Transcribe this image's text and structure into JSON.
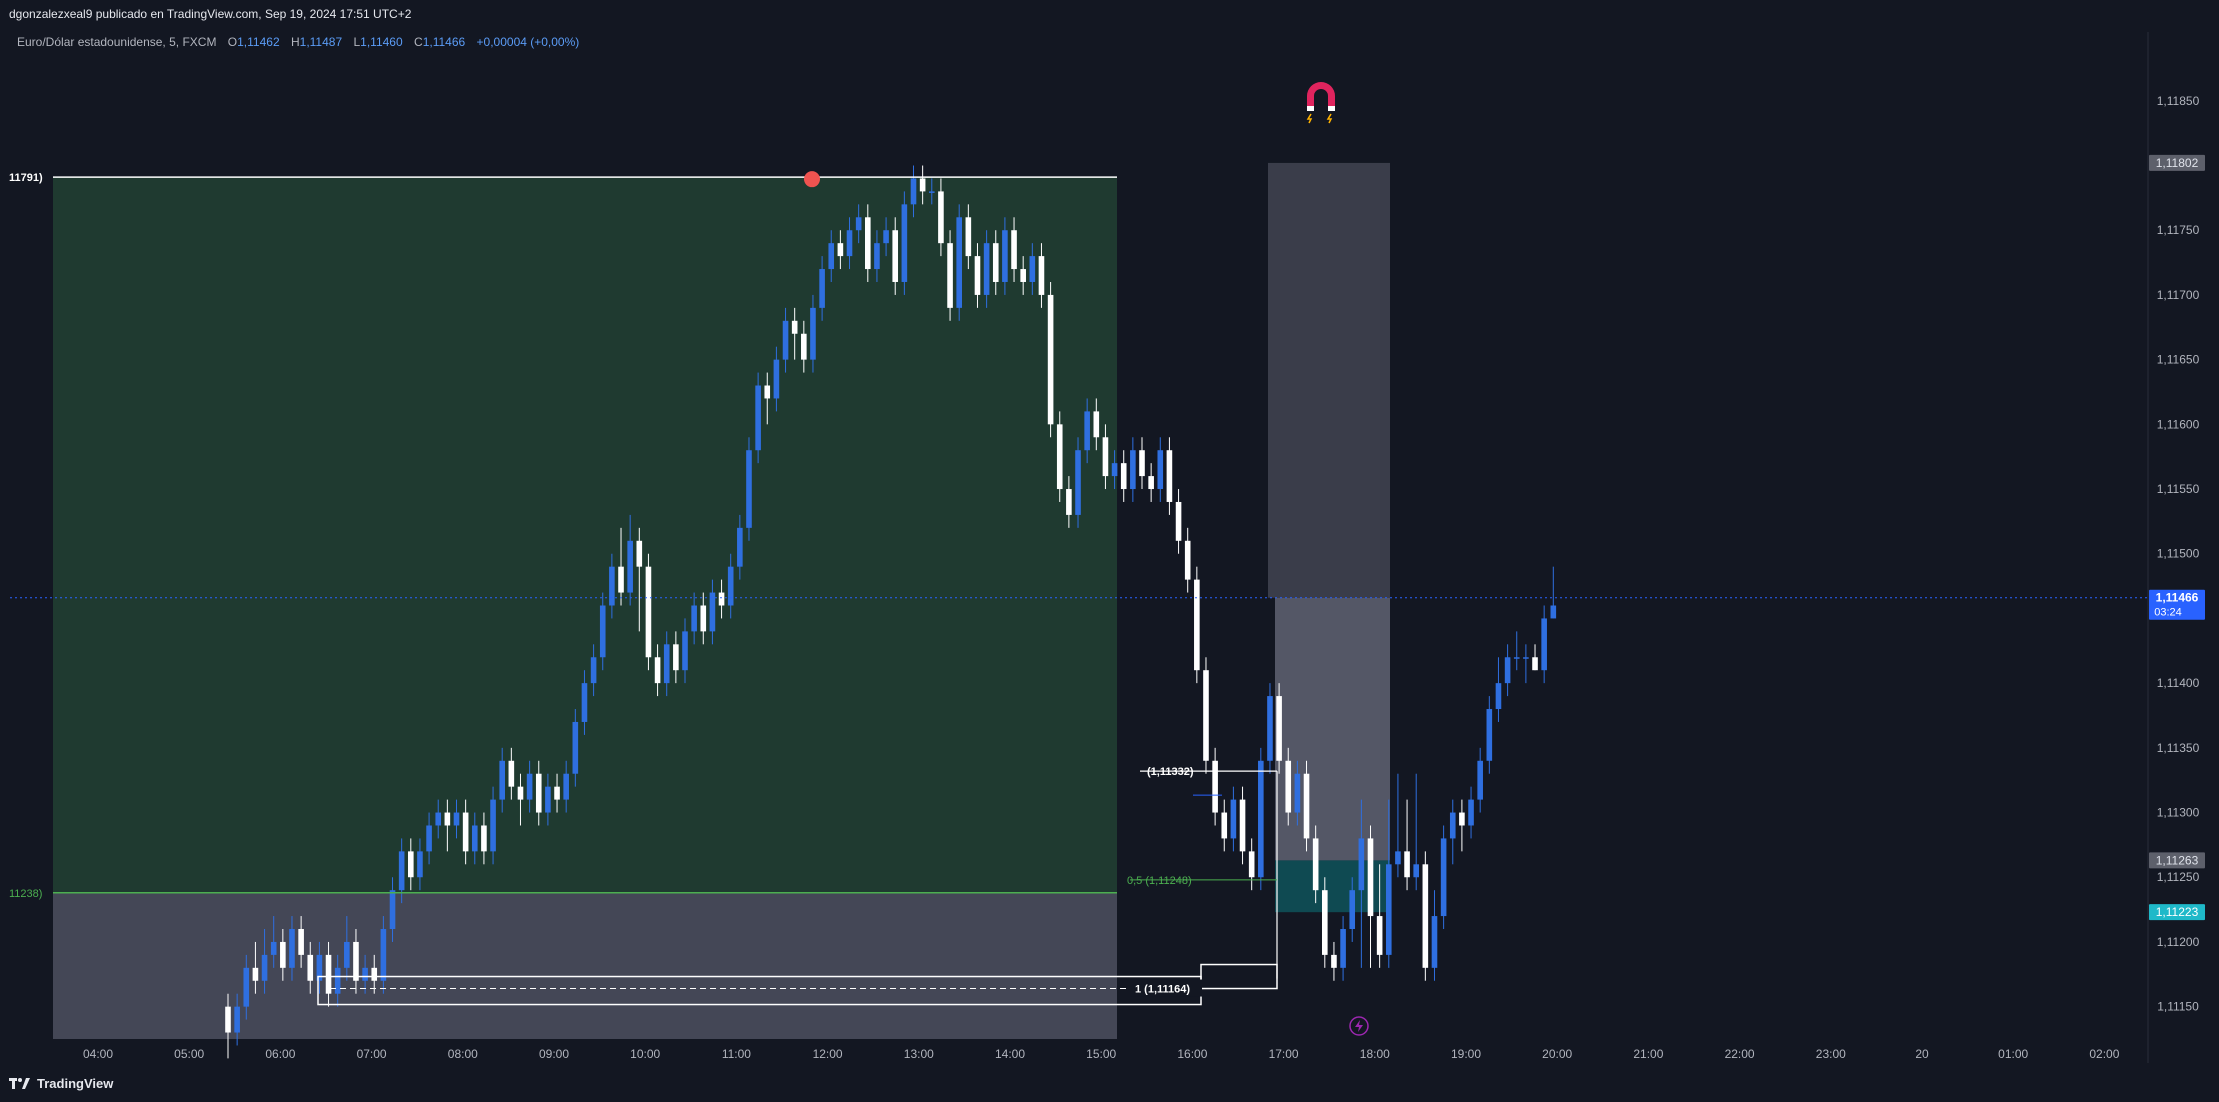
{
  "header": {
    "published": "dgonzalezxeal9 publicado en TradingView.com, Sep 19, 2024 17:51 UTC+2",
    "symbol": "Euro/Dólar estadounidense, 5, FXCM",
    "ohlc": [
      {
        "key": "O",
        "value": "1,11462"
      },
      {
        "key": "H",
        "value": "1,11487"
      },
      {
        "key": "L",
        "value": "1,11460"
      },
      {
        "key": "C",
        "value": "1,11466"
      }
    ],
    "change": "+0,00004 (+0,00%)"
  },
  "footer": {
    "brand": "TradingView",
    "logo_icon": "tradingview-logo-icon"
  },
  "colors": {
    "background": "#131722",
    "bull": "#2f6fe0",
    "bear": "#ffffff",
    "zone_green": "#1f3a30",
    "zone_gray": "#4a4d5c",
    "price_tag": "#2962ff",
    "cyan_tag": "#1fb9c9",
    "fib_green": "#4caf50"
  },
  "chart_data": {
    "type": "candlestick",
    "symbol": "EUR/USD",
    "interval": "5",
    "x_ticks": [
      "04:00",
      "05:00",
      "06:00",
      "07:00",
      "08:00",
      "09:00",
      "10:00",
      "11:00",
      "12:00",
      "13:00",
      "14:00",
      "15:00",
      "16:00",
      "17:00",
      "18:00",
      "19:00",
      "20:00",
      "21:00",
      "22:00",
      "23:00",
      "20",
      "01:00",
      "02:00"
    ],
    "y_ticks": [
      "1,11850",
      "1,11750",
      "1,11700",
      "1,11650",
      "1,11600",
      "1,11550",
      "1,11500",
      "1,11400",
      "1,11350",
      "1,11300",
      "1,11250",
      "1,11200",
      "1,11150"
    ],
    "ylim": [
      1.11125,
      1.1188
    ],
    "price_tags": [
      {
        "label": "1,11802",
        "value": 1.11802,
        "style": "gray"
      },
      {
        "label": "1,11466",
        "sub": "03:24",
        "value": 1.11466,
        "style": "blue"
      },
      {
        "label": "1,11263",
        "value": 1.11263,
        "style": "gray"
      },
      {
        "label": "1,11223",
        "value": 1.11223,
        "style": "cyan"
      }
    ],
    "levels": [
      {
        "label": "11791)",
        "value": 1.11791,
        "color": "#ffffff"
      },
      {
        "label": "11238)",
        "value": 1.11238,
        "color": "#4caf50"
      }
    ],
    "annotations": [
      {
        "label": "(1,11332)",
        "value": 1.11332
      },
      {
        "label": "1 (1,11164)",
        "value": 1.11164
      },
      {
        "label": "0,5 (1,11248)",
        "value": 1.11248
      }
    ],
    "current_price": 1.11466,
    "countdown": "03:24",
    "candles": [
      [
        1.1115,
        1.1113,
        1.1116,
        1.1111
      ],
      [
        1.1113,
        1.1115,
        1.1116,
        1.1112
      ],
      [
        1.1115,
        1.1118,
        1.1119,
        1.1114
      ],
      [
        1.1118,
        1.1117,
        1.112,
        1.1116
      ],
      [
        1.1117,
        1.1119,
        1.1121,
        1.1116
      ],
      [
        1.1119,
        1.112,
        1.1122,
        1.1118
      ],
      [
        1.112,
        1.1118,
        1.1121,
        1.1117
      ],
      [
        1.1118,
        1.1121,
        1.1122,
        1.1117
      ],
      [
        1.1121,
        1.1119,
        1.1122,
        1.1118
      ],
      [
        1.1119,
        1.1117,
        1.112,
        1.1116
      ],
      [
        1.1117,
        1.1119,
        1.112,
        1.1116
      ],
      [
        1.1119,
        1.1116,
        1.112,
        1.1115
      ],
      [
        1.1116,
        1.1118,
        1.1119,
        1.1115
      ],
      [
        1.1118,
        1.112,
        1.1122,
        1.1117
      ],
      [
        1.112,
        1.1117,
        1.1121,
        1.1116
      ],
      [
        1.1117,
        1.1118,
        1.1119,
        1.1116
      ],
      [
        1.1118,
        1.1117,
        1.1119,
        1.1116
      ],
      [
        1.1117,
        1.1121,
        1.1122,
        1.1116
      ],
      [
        1.1121,
        1.1124,
        1.1125,
        1.112
      ],
      [
        1.1124,
        1.1127,
        1.1128,
        1.1123
      ],
      [
        1.1127,
        1.1125,
        1.1128,
        1.1124
      ],
      [
        1.1125,
        1.1127,
        1.1128,
        1.1124
      ],
      [
        1.1127,
        1.1129,
        1.113,
        1.1126
      ],
      [
        1.1129,
        1.113,
        1.1131,
        1.1128
      ],
      [
        1.113,
        1.1129,
        1.1131,
        1.1127
      ],
      [
        1.1129,
        1.113,
        1.1131,
        1.1128
      ],
      [
        1.113,
        1.1127,
        1.1131,
        1.1126
      ],
      [
        1.1127,
        1.1129,
        1.113,
        1.1126
      ],
      [
        1.1129,
        1.1127,
        1.113,
        1.1126
      ],
      [
        1.1127,
        1.1131,
        1.1132,
        1.1126
      ],
      [
        1.1131,
        1.1134,
        1.1135,
        1.113
      ],
      [
        1.1134,
        1.1132,
        1.1135,
        1.1131
      ],
      [
        1.1132,
        1.1131,
        1.1133,
        1.1129
      ],
      [
        1.1131,
        1.1133,
        1.1134,
        1.113
      ],
      [
        1.1133,
        1.113,
        1.1134,
        1.1129
      ],
      [
        1.113,
        1.1132,
        1.1133,
        1.1129
      ],
      [
        1.1132,
        1.1131,
        1.1133,
        1.113
      ],
      [
        1.1131,
        1.1133,
        1.1134,
        1.113
      ],
      [
        1.1133,
        1.1137,
        1.1138,
        1.1132
      ],
      [
        1.1137,
        1.114,
        1.1141,
        1.1136
      ],
      [
        1.114,
        1.1142,
        1.1143,
        1.1139
      ],
      [
        1.1142,
        1.1146,
        1.1147,
        1.1141
      ],
      [
        1.1146,
        1.1149,
        1.115,
        1.1145
      ],
      [
        1.1149,
        1.1147,
        1.1152,
        1.1146
      ],
      [
        1.1147,
        1.1151,
        1.1153,
        1.1146
      ],
      [
        1.1151,
        1.1149,
        1.1152,
        1.1144
      ],
      [
        1.1149,
        1.1142,
        1.115,
        1.1141
      ],
      [
        1.1142,
        1.114,
        1.1143,
        1.1139
      ],
      [
        1.114,
        1.1143,
        1.1144,
        1.1139
      ],
      [
        1.1143,
        1.1141,
        1.1144,
        1.114
      ],
      [
        1.1141,
        1.1144,
        1.1145,
        1.114
      ],
      [
        1.1144,
        1.1146,
        1.1147,
        1.1143
      ],
      [
        1.1146,
        1.1144,
        1.1147,
        1.1143
      ],
      [
        1.1144,
        1.1147,
        1.1148,
        1.1143
      ],
      [
        1.1147,
        1.1146,
        1.1148,
        1.1145
      ],
      [
        1.1146,
        1.1149,
        1.115,
        1.1145
      ],
      [
        1.1149,
        1.1152,
        1.1153,
        1.1148
      ],
      [
        1.1152,
        1.1158,
        1.1159,
        1.1151
      ],
      [
        1.1158,
        1.1163,
        1.1164,
        1.1157
      ],
      [
        1.1163,
        1.1162,
        1.1164,
        1.116
      ],
      [
        1.1162,
        1.1165,
        1.1166,
        1.1161
      ],
      [
        1.1165,
        1.1168,
        1.1169,
        1.1164
      ],
      [
        1.1168,
        1.1167,
        1.1169,
        1.1165
      ],
      [
        1.1167,
        1.1165,
        1.1168,
        1.1164
      ],
      [
        1.1165,
        1.1169,
        1.117,
        1.1164
      ],
      [
        1.1169,
        1.1172,
        1.1173,
        1.1168
      ],
      [
        1.1172,
        1.1174,
        1.1175,
        1.1171
      ],
      [
        1.1174,
        1.1173,
        1.1175,
        1.1172
      ],
      [
        1.1173,
        1.1175,
        1.1176,
        1.1172
      ],
      [
        1.1175,
        1.1176,
        1.1177,
        1.1174
      ],
      [
        1.1176,
        1.1172,
        1.1177,
        1.1171
      ],
      [
        1.1172,
        1.1174,
        1.1175,
        1.1171
      ],
      [
        1.1174,
        1.1175,
        1.1176,
        1.1173
      ],
      [
        1.1175,
        1.1171,
        1.1176,
        1.117
      ],
      [
        1.1171,
        1.1177,
        1.1178,
        1.117
      ],
      [
        1.1177,
        1.1179,
        1.118,
        1.1176
      ],
      [
        1.1179,
        1.1178,
        1.118,
        1.1177
      ],
      [
        1.1178,
        1.1178,
        1.1179,
        1.1177
      ],
      [
        1.1178,
        1.1174,
        1.1179,
        1.1173
      ],
      [
        1.1174,
        1.1169,
        1.1175,
        1.1168
      ],
      [
        1.1169,
        1.1176,
        1.1177,
        1.1168
      ],
      [
        1.1176,
        1.1173,
        1.1177,
        1.1172
      ],
      [
        1.1173,
        1.117,
        1.1174,
        1.1169
      ],
      [
        1.117,
        1.1174,
        1.1175,
        1.1169
      ],
      [
        1.1174,
        1.1171,
        1.1175,
        1.117
      ],
      [
        1.1171,
        1.1175,
        1.1176,
        1.117
      ],
      [
        1.1175,
        1.1172,
        1.1176,
        1.1171
      ],
      [
        1.1172,
        1.1171,
        1.1173,
        1.117
      ],
      [
        1.1171,
        1.1173,
        1.1174,
        1.117
      ],
      [
        1.1173,
        1.117,
        1.1174,
        1.1169
      ],
      [
        1.117,
        1.116,
        1.1171,
        1.1159
      ],
      [
        1.116,
        1.1155,
        1.1161,
        1.1154
      ],
      [
        1.1155,
        1.1153,
        1.1156,
        1.1152
      ],
      [
        1.1153,
        1.1158,
        1.1159,
        1.1152
      ],
      [
        1.1158,
        1.1161,
        1.1162,
        1.1157
      ],
      [
        1.1161,
        1.1159,
        1.1162,
        1.1158
      ],
      [
        1.1159,
        1.1156,
        1.116,
        1.1155
      ],
      [
        1.1156,
        1.1157,
        1.1158,
        1.1155
      ],
      [
        1.1157,
        1.1155,
        1.1158,
        1.1154
      ],
      [
        1.1155,
        1.1158,
        1.1159,
        1.1154
      ],
      [
        1.1158,
        1.1156,
        1.1159,
        1.1155
      ],
      [
        1.1156,
        1.1155,
        1.1157,
        1.1154
      ],
      [
        1.1155,
        1.1158,
        1.1159,
        1.1154
      ],
      [
        1.1158,
        1.1154,
        1.1159,
        1.1153
      ],
      [
        1.1154,
        1.1151,
        1.1155,
        1.115
      ],
      [
        1.1151,
        1.1148,
        1.1152,
        1.1147
      ],
      [
        1.1148,
        1.1141,
        1.1149,
        1.114
      ],
      [
        1.1141,
        1.1134,
        1.1142,
        1.1133
      ],
      [
        1.1134,
        1.113,
        1.1135,
        1.1129
      ],
      [
        1.113,
        1.1128,
        1.1131,
        1.1127
      ],
      [
        1.1128,
        1.1131,
        1.1132,
        1.1127
      ],
      [
        1.1131,
        1.1127,
        1.1132,
        1.1126
      ],
      [
        1.1127,
        1.1125,
        1.1128,
        1.1124
      ],
      [
        1.1125,
        1.1134,
        1.1135,
        1.1124
      ],
      [
        1.1134,
        1.1139,
        1.114,
        1.1133
      ],
      [
        1.1139,
        1.1134,
        1.114,
        1.1133
      ],
      [
        1.1134,
        1.113,
        1.1135,
        1.1129
      ],
      [
        1.113,
        1.1133,
        1.1134,
        1.1129
      ],
      [
        1.1133,
        1.1128,
        1.1134,
        1.1127
      ],
      [
        1.1128,
        1.1124,
        1.1129,
        1.1123
      ],
      [
        1.1124,
        1.1119,
        1.1125,
        1.1118
      ],
      [
        1.1119,
        1.1118,
        1.112,
        1.1117
      ],
      [
        1.1118,
        1.1121,
        1.1122,
        1.1117
      ],
      [
        1.1121,
        1.1124,
        1.1125,
        1.112
      ],
      [
        1.1124,
        1.1128,
        1.1131,
        1.1118
      ],
      [
        1.1128,
        1.1122,
        1.1129,
        1.1118
      ],
      [
        1.1122,
        1.1119,
        1.1126,
        1.1118
      ],
      [
        1.1119,
        1.1126,
        1.1131,
        1.1118
      ],
      [
        1.1126,
        1.1127,
        1.1133,
        1.1125
      ],
      [
        1.1127,
        1.1125,
        1.1131,
        1.1124
      ],
      [
        1.1125,
        1.1126,
        1.1133,
        1.1124
      ],
      [
        1.1126,
        1.1118,
        1.1127,
        1.1117
      ],
      [
        1.1118,
        1.1122,
        1.1124,
        1.1117
      ],
      [
        1.1122,
        1.1128,
        1.1129,
        1.1121
      ],
      [
        1.1128,
        1.113,
        1.1131,
        1.1126
      ],
      [
        1.113,
        1.1129,
        1.1131,
        1.1127
      ],
      [
        1.1129,
        1.1131,
        1.1132,
        1.1128
      ],
      [
        1.1131,
        1.1134,
        1.1135,
        1.113
      ],
      [
        1.1134,
        1.1138,
        1.1139,
        1.1133
      ],
      [
        1.1138,
        1.114,
        1.1142,
        1.1137
      ],
      [
        1.114,
        1.1142,
        1.1143,
        1.1139
      ],
      [
        1.1142,
        1.1142,
        1.1144,
        1.1141
      ],
      [
        1.1142,
        1.1142,
        1.1143,
        1.114
      ],
      [
        1.1142,
        1.1141,
        1.1143,
        1.1141
      ],
      [
        1.1141,
        1.1145,
        1.1146,
        1.114
      ],
      [
        1.1145,
        1.1146,
        1.1149,
        1.1145
      ]
    ]
  }
}
